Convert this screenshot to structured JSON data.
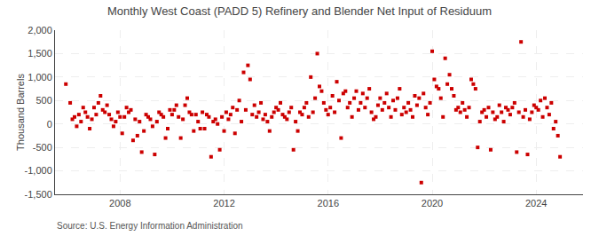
{
  "chart_data": {
    "type": "scatter",
    "title": "Monthly West Coast (PADD 5) Refinery and Blender Net Input of Residuum",
    "ylabel": "Thousand Barrels",
    "annotations": [
      "Source: U.S. Energy Information Administration"
    ],
    "color": "#cc0000",
    "marker": "square",
    "grid": true,
    "xlim": [
      2005.5,
      2025.8
    ],
    "xticks": [
      2008,
      2012,
      2016,
      2020,
      2024
    ],
    "ylim": [
      -1500,
      2000
    ],
    "yticks": [
      {
        "value": -1500,
        "label": "-1,500"
      },
      {
        "value": -1000,
        "label": "-1,000"
      },
      -500,
      0,
      500,
      {
        "value": 1000,
        "label": "1,000"
      },
      {
        "value": 1500,
        "label": "1,500"
      },
      {
        "value": 2000,
        "label": "2,000"
      }
    ],
    "x": [
      2005.917,
      2006.083,
      2006.167,
      2006.25,
      2006.333,
      2006.417,
      2006.5,
      2006.583,
      2006.667,
      2006.75,
      2006.833,
      2006.917,
      2007.0,
      2007.083,
      2007.167,
      2007.25,
      2007.333,
      2007.417,
      2007.5,
      2007.583,
      2007.667,
      2007.75,
      2007.833,
      2007.917,
      2008.0,
      2008.083,
      2008.167,
      2008.25,
      2008.333,
      2008.417,
      2008.5,
      2008.583,
      2008.667,
      2008.75,
      2008.833,
      2008.917,
      2009.0,
      2009.083,
      2009.167,
      2009.25,
      2009.333,
      2009.417,
      2009.5,
      2009.583,
      2009.667,
      2009.75,
      2009.833,
      2009.917,
      2010.0,
      2010.083,
      2010.167,
      2010.25,
      2010.333,
      2010.417,
      2010.5,
      2010.583,
      2010.667,
      2010.75,
      2010.833,
      2010.917,
      2011.0,
      2011.083,
      2011.167,
      2011.25,
      2011.333,
      2011.417,
      2011.5,
      2011.583,
      2011.667,
      2011.75,
      2011.833,
      2011.917,
      2012.0,
      2012.083,
      2012.167,
      2012.25,
      2012.333,
      2012.417,
      2012.5,
      2012.583,
      2012.667,
      2012.75,
      2012.833,
      2012.917,
      2013.0,
      2013.083,
      2013.167,
      2013.25,
      2013.333,
      2013.417,
      2013.5,
      2013.583,
      2013.667,
      2013.75,
      2013.833,
      2013.917,
      2014.0,
      2014.083,
      2014.167,
      2014.25,
      2014.333,
      2014.417,
      2014.5,
      2014.583,
      2014.667,
      2014.75,
      2014.833,
      2014.917,
      2015.0,
      2015.083,
      2015.167,
      2015.25,
      2015.333,
      2015.417,
      2015.5,
      2015.583,
      2015.667,
      2015.75,
      2015.833,
      2015.917,
      2016.0,
      2016.083,
      2016.167,
      2016.25,
      2016.333,
      2016.417,
      2016.5,
      2016.583,
      2016.667,
      2016.75,
      2016.833,
      2016.917,
      2017.0,
      2017.083,
      2017.167,
      2017.25,
      2017.333,
      2017.417,
      2017.5,
      2017.583,
      2017.667,
      2017.75,
      2017.833,
      2017.917,
      2018.0,
      2018.083,
      2018.167,
      2018.25,
      2018.333,
      2018.417,
      2018.5,
      2018.583,
      2018.667,
      2018.75,
      2018.833,
      2018.917,
      2019.0,
      2019.083,
      2019.167,
      2019.25,
      2019.333,
      2019.417,
      2019.5,
      2019.583,
      2019.667,
      2019.75,
      2019.833,
      2019.917,
      2020.0,
      2020.083,
      2020.167,
      2020.25,
      2020.333,
      2020.417,
      2020.5,
      2020.583,
      2020.667,
      2020.75,
      2020.833,
      2020.917,
      2021.0,
      2021.083,
      2021.167,
      2021.25,
      2021.333,
      2021.417,
      2021.5,
      2021.583,
      2021.667,
      2021.75,
      2021.833,
      2021.917,
      2022.0,
      2022.083,
      2022.167,
      2022.25,
      2022.333,
      2022.417,
      2022.5,
      2022.583,
      2022.667,
      2022.75,
      2022.833,
      2022.917,
      2023.0,
      2023.083,
      2023.167,
      2023.25,
      2023.333,
      2023.417,
      2023.5,
      2023.583,
      2023.667,
      2023.75,
      2023.833,
      2023.917,
      2024.0,
      2024.083,
      2024.167,
      2024.25,
      2024.333,
      2024.417,
      2024.5,
      2024.583,
      2024.667,
      2024.75,
      2024.833,
      2024.917
    ],
    "values": [
      850,
      450,
      100,
      150,
      -50,
      200,
      50,
      350,
      250,
      150,
      -100,
      100,
      350,
      200,
      450,
      600,
      300,
      250,
      400,
      200,
      100,
      -50,
      50,
      250,
      150,
      -200,
      150,
      350,
      250,
      300,
      -350,
      100,
      -250,
      50,
      -600,
      -150,
      200,
      150,
      100,
      -50,
      -650,
      50,
      250,
      200,
      150,
      -300,
      -100,
      300,
      200,
      300,
      400,
      150,
      -300,
      100,
      400,
      550,
      250,
      200,
      -150,
      200,
      50,
      -100,
      250,
      -100,
      200,
      150,
      -700,
      50,
      100,
      0,
      -550,
      150,
      -150,
      250,
      100,
      200,
      350,
      -200,
      300,
      500,
      50,
      1100,
      300,
      1250,
      950,
      200,
      400,
      150,
      250,
      450,
      100,
      200,
      50,
      -150,
      150,
      250,
      350,
      300,
      450,
      200,
      150,
      100,
      250,
      350,
      -550,
      50,
      -150,
      250,
      200,
      350,
      450,
      150,
      1000,
      250,
      550,
      1500,
      800,
      700,
      450,
      300,
      200,
      350,
      600,
      250,
      900,
      500,
      -300,
      650,
      700,
      350,
      450,
      150,
      550,
      700,
      300,
      450,
      650,
      350,
      550,
      750,
      250,
      100,
      150,
      400,
      550,
      300,
      450,
      650,
      350,
      150,
      500,
      300,
      550,
      750,
      200,
      350,
      250,
      450,
      300,
      150,
      600,
      400,
      550,
      -1250,
      650,
      350,
      200,
      450,
      1550,
      950,
      800,
      750,
      550,
      150,
      1400,
      850,
      1050,
      750,
      600,
      300,
      350,
      250,
      450,
      300,
      150,
      350,
      950,
      850,
      750,
      -500,
      50,
      250,
      300,
      150,
      350,
      -550,
      250,
      100,
      150,
      400,
      250,
      50,
      350,
      300,
      200,
      350,
      450,
      -600,
      250,
      1750,
      150,
      300,
      -650,
      100,
      250,
      400,
      350,
      300,
      500,
      150,
      550,
      350,
      200,
      450,
      -100,
      50,
      -250,
      -700
    ]
  }
}
